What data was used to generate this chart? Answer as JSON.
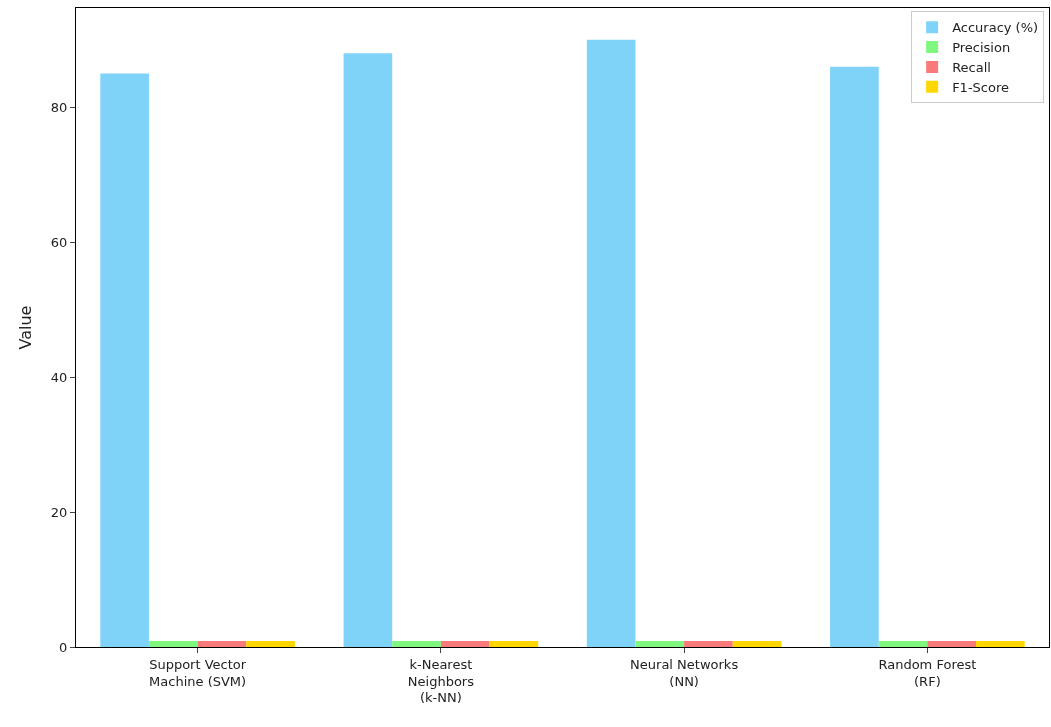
{
  "chart_data": {
    "type": "bar",
    "ylabel": "Value",
    "categories": [
      "Support Vector\nMachine (SVM)",
      "k-Nearest\nNeighbors\n(k-NN)",
      "Neural Networks\n(NN)",
      "Random Forest\n(RF)"
    ],
    "series": [
      {
        "name": "Accuracy (%)",
        "color": "#7fd3f8",
        "values": [
          85,
          88,
          90,
          86
        ]
      },
      {
        "name": "Precision",
        "color": "#80f880",
        "values": [
          0.9,
          0.9,
          0.9,
          0.9
        ]
      },
      {
        "name": "Recall",
        "color": "#f87a7a",
        "values": [
          0.9,
          0.9,
          0.9,
          0.9
        ]
      },
      {
        "name": "F1-Score",
        "color": "#ffd700",
        "values": [
          0.9,
          0.9,
          0.9,
          0.9
        ]
      }
    ],
    "ylim": [
      0,
      94.7
    ],
    "yticks": [
      0,
      20,
      40,
      60,
      80
    ],
    "legend": "top right"
  }
}
